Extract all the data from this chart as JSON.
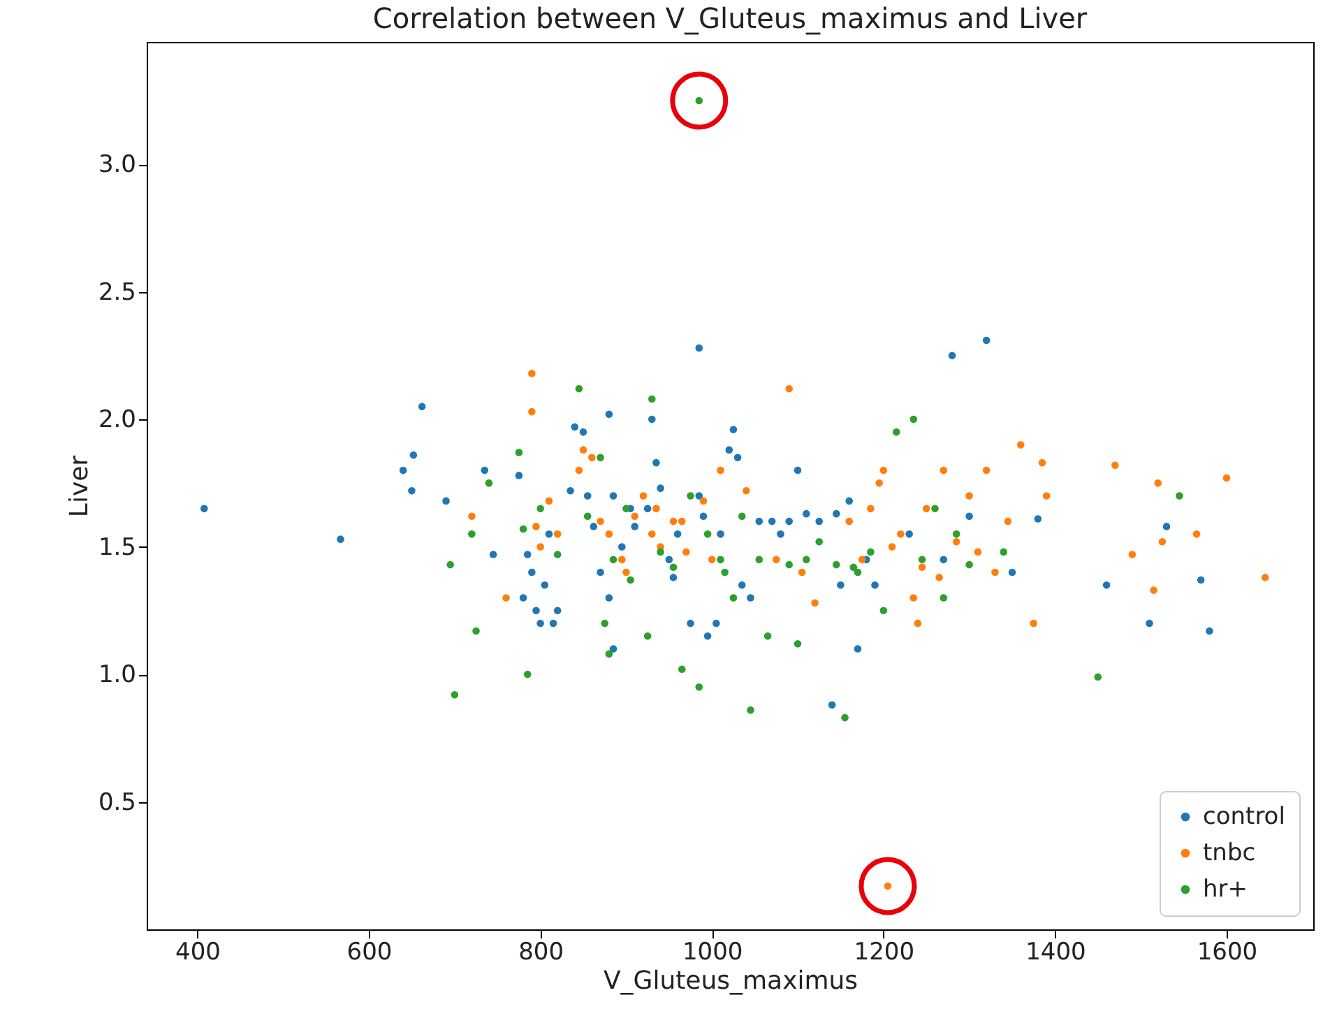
{
  "chart_data": {
    "type": "scatter",
    "title": "Correlation between V_Gluteus_maximus and Liver",
    "xlabel": "V_Gluteus_maximus",
    "ylabel": "Liver",
    "xlim": [
      341,
      1701
    ],
    "ylim": [
      0.0,
      3.48
    ],
    "xticks": [
      400,
      600,
      800,
      1000,
      1200,
      1400,
      1600
    ],
    "yticks": [
      {
        "value": 0.5,
        "label": "0.5"
      },
      {
        "value": 1.0,
        "label": "1.0"
      },
      {
        "value": 1.5,
        "label": "1.5"
      },
      {
        "value": 2.0,
        "label": "2.0"
      },
      {
        "value": 2.5,
        "label": "2.5"
      },
      {
        "value": 3.0,
        "label": "3.0"
      }
    ],
    "legend": "bottom right",
    "marker": "circle",
    "series": [
      {
        "name": "control",
        "color": "#1f77b4",
        "x": [
          408,
          567,
          640,
          650,
          652,
          662,
          690,
          735,
          745,
          775,
          780,
          785,
          790,
          795,
          800,
          805,
          810,
          815,
          820,
          835,
          840,
          850,
          855,
          862,
          870,
          880,
          885,
          885,
          880,
          895,
          905,
          910,
          925,
          930,
          935,
          940,
          950,
          955,
          960,
          975,
          985,
          985,
          990,
          995,
          1005,
          1010,
          1020,
          1025,
          1030,
          1035,
          1045,
          1055,
          1070,
          1080,
          1090,
          1100,
          1110,
          1125,
          1140,
          1145,
          1150,
          1160,
          1170,
          1180,
          1190,
          1230,
          1270,
          1280,
          1300,
          1320,
          1350,
          1380,
          1460,
          1510,
          1530,
          1570,
          1580
        ],
        "values": [
          1.65,
          1.53,
          1.8,
          1.72,
          1.86,
          2.05,
          1.68,
          1.8,
          1.47,
          1.78,
          1.3,
          1.47,
          1.4,
          1.25,
          1.2,
          1.35,
          1.55,
          1.2,
          1.25,
          1.72,
          1.97,
          1.95,
          1.7,
          1.58,
          1.4,
          1.3,
          1.7,
          1.1,
          2.02,
          1.5,
          1.65,
          1.58,
          1.65,
          2.0,
          1.83,
          1.73,
          1.45,
          1.38,
          1.55,
          1.2,
          2.28,
          1.7,
          1.62,
          1.15,
          1.2,
          1.55,
          1.88,
          1.96,
          1.85,
          1.35,
          1.3,
          1.6,
          1.6,
          1.55,
          1.6,
          1.8,
          1.63,
          1.6,
          0.88,
          1.63,
          1.35,
          1.68,
          1.1,
          1.45,
          1.35,
          1.55,
          1.45,
          2.25,
          1.62,
          2.31,
          1.4,
          1.61,
          1.35,
          1.2,
          1.58,
          1.37,
          1.17
        ]
      },
      {
        "name": "tnbc",
        "color": "#ff7f0e",
        "x": [
          720,
          760,
          790,
          790,
          795,
          800,
          810,
          820,
          845,
          850,
          860,
          870,
          880,
          895,
          900,
          910,
          920,
          930,
          935,
          940,
          955,
          965,
          970,
          990,
          1000,
          1010,
          1040,
          1075,
          1090,
          1105,
          1120,
          1160,
          1175,
          1185,
          1195,
          1200,
          1205,
          1210,
          1220,
          1235,
          1240,
          1245,
          1250,
          1265,
          1270,
          1285,
          1300,
          1310,
          1320,
          1330,
          1345,
          1360,
          1375,
          1385,
          1390,
          1470,
          1490,
          1515,
          1520,
          1525,
          1565,
          1600,
          1645
        ],
        "values": [
          1.62,
          1.3,
          2.18,
          2.03,
          1.58,
          1.5,
          1.68,
          1.55,
          1.8,
          1.88,
          1.85,
          1.6,
          1.55,
          1.45,
          1.4,
          1.62,
          1.7,
          1.55,
          1.65,
          1.5,
          1.6,
          1.6,
          1.48,
          1.68,
          1.45,
          1.8,
          1.72,
          1.45,
          2.12,
          1.4,
          1.28,
          1.6,
          1.45,
          1.65,
          1.75,
          1.8,
          0.17,
          1.5,
          1.55,
          1.3,
          1.2,
          1.42,
          1.65,
          1.38,
          1.8,
          1.52,
          1.7,
          1.48,
          1.8,
          1.4,
          1.6,
          1.9,
          1.2,
          1.83,
          1.7,
          1.82,
          1.47,
          1.33,
          1.75,
          1.52,
          1.55,
          1.77,
          1.38
        ]
      },
      {
        "name": "hr+",
        "color": "#2ca02c",
        "x": [
          695,
          700,
          720,
          725,
          740,
          775,
          780,
          785,
          800,
          820,
          845,
          855,
          870,
          875,
          880,
          885,
          900,
          905,
          925,
          930,
          940,
          955,
          965,
          975,
          985,
          985,
          995,
          1010,
          1015,
          1025,
          1035,
          1045,
          1055,
          1065,
          1090,
          1100,
          1110,
          1125,
          1145,
          1155,
          1165,
          1170,
          1185,
          1200,
          1215,
          1235,
          1245,
          1260,
          1270,
          1285,
          1300,
          1340,
          1450,
          1545
        ],
        "values": [
          1.43,
          0.92,
          1.55,
          1.17,
          1.75,
          1.87,
          1.57,
          1.0,
          1.65,
          1.47,
          2.12,
          1.62,
          1.85,
          1.2,
          1.08,
          1.45,
          1.65,
          1.37,
          1.15,
          2.08,
          1.48,
          1.42,
          1.02,
          1.7,
          3.25,
          0.95,
          1.55,
          1.45,
          1.4,
          1.3,
          1.62,
          0.86,
          1.45,
          1.15,
          1.43,
          1.12,
          1.45,
          1.52,
          1.43,
          0.83,
          1.42,
          1.4,
          1.48,
          1.25,
          1.95,
          2.0,
          1.45,
          1.65,
          1.3,
          1.55,
          1.43,
          1.48,
          0.99,
          1.7
        ]
      }
    ]
  }
}
